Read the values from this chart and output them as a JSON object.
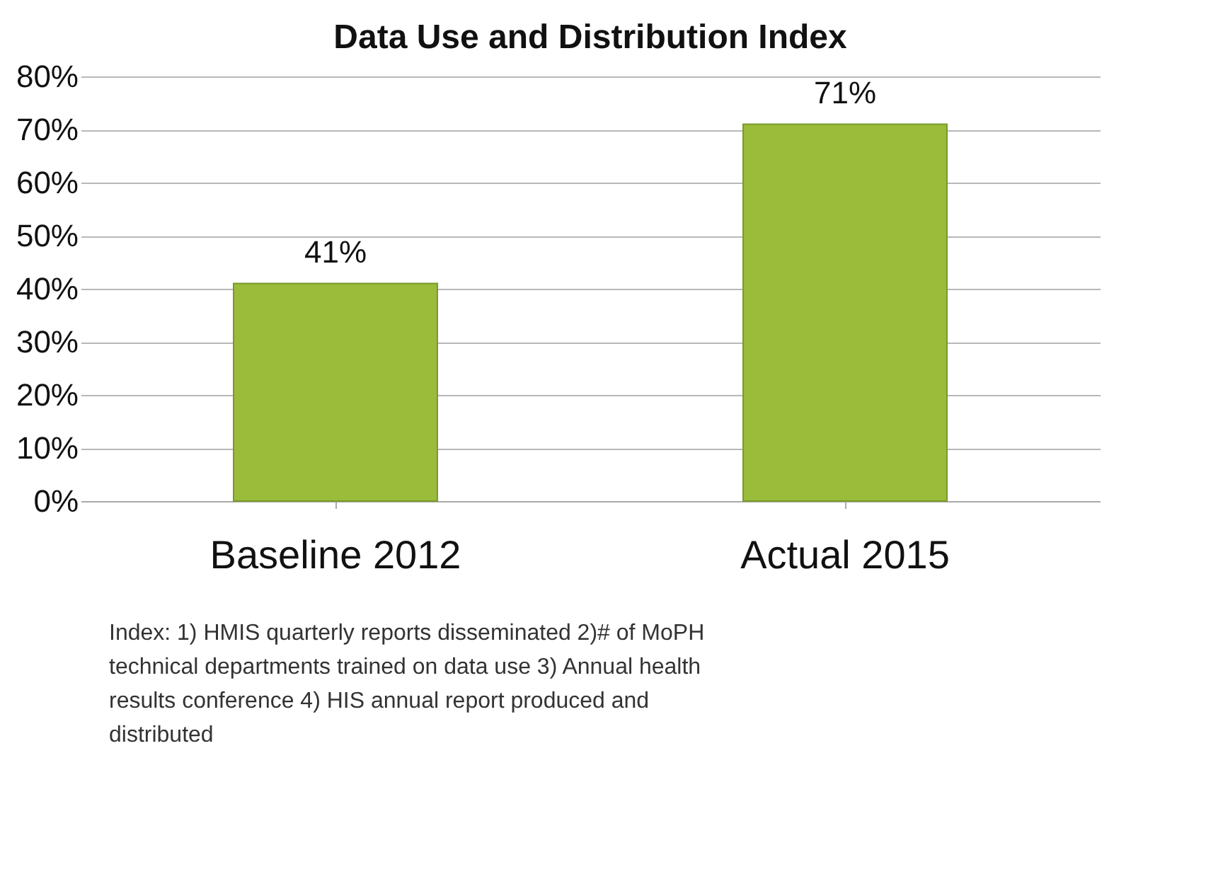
{
  "chart_data": {
    "type": "bar",
    "title": "Data Use and Distribution Index",
    "categories": [
      "Baseline 2012",
      "Actual 2015"
    ],
    "values": [
      41,
      71
    ],
    "color": "#9bbb3b",
    "value_labels": [
      "41%",
      "71%"
    ],
    "ylim": [
      0,
      80
    ],
    "yticks": [
      {
        "value": 0,
        "label": "0%"
      },
      {
        "value": 10,
        "label": "10%"
      },
      {
        "value": 20,
        "label": "20%"
      },
      {
        "value": 30,
        "label": "30%"
      },
      {
        "value": 40,
        "label": "40%"
      },
      {
        "value": 50,
        "label": "50%"
      },
      {
        "value": 60,
        "label": "60%"
      },
      {
        "value": 70,
        "label": "70%"
      },
      {
        "value": 80,
        "label": "80%"
      }
    ],
    "grid": "y",
    "annotations": [
      "Index: 1) HMIS quarterly reports disseminated 2)# of MoPH technical departments trained on data use 3) Annual health results conference 4) HIS annual report produced and distributed"
    ]
  }
}
